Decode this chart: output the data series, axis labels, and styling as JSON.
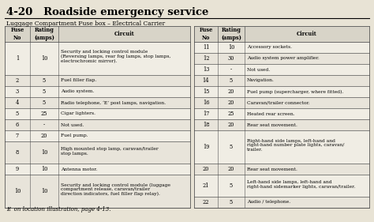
{
  "title": "4-20   Roadside emergency service",
  "subtitle": "Luggage Compartment Fuse box – Electrical Carrier",
  "footnote": "E  on location illustration, page 4-13.",
  "bg_color": "#e8e3d5",
  "header_bg": "#d8d4c8",
  "row_bg_even": "#f0ede4",
  "row_bg_odd": "#e8e4da",
  "table1_headers": [
    "Fuse\nNo",
    "Rating\n(amps)",
    "Circuit"
  ],
  "table1_rows": [
    [
      "1",
      "10",
      "Security and locking control module\n(Reversing lamps, rear fog lamps, stop lamps,\nelectrochromic mirror)."
    ],
    [
      "2",
      "5",
      "Fuel filler flap."
    ],
    [
      "3",
      "5",
      "Audio system."
    ],
    [
      "4",
      "5",
      "Radio telephone, ‘E’ post lamps, navigation."
    ],
    [
      "5",
      "25",
      "Cigar lighters."
    ],
    [
      "6",
      "-",
      "Not used."
    ],
    [
      "7",
      "20",
      "Fuel pump."
    ],
    [
      "8",
      "10",
      "High mounted stop lamp, caravan/trailer\nstop lamps."
    ],
    [
      "9",
      "10",
      "Antenna motor."
    ],
    [
      "10",
      "10",
      "Security and locking control module (luggage\ncompartment release, caravan/trailer\ndirection indicators, fuel filler flap relay)."
    ]
  ],
  "table1_row_lines": [
    3,
    1,
    1,
    1,
    1,
    1,
    1,
    2,
    1,
    3
  ],
  "table2_headers": [
    "Fuse\nNo",
    "Rating\n(amps)",
    "Circuit"
  ],
  "table2_rows": [
    [
      "11",
      "10",
      "Accessory sockets."
    ],
    [
      "12",
      "30",
      "Audio system power amplifier."
    ],
    [
      "13",
      "-",
      "Not used."
    ],
    [
      "14",
      "5",
      "Navigation."
    ],
    [
      "15",
      "20",
      "Fuel pump (supercharger, where fitted)."
    ],
    [
      "16",
      "20",
      "Caravan/trailer connector."
    ],
    [
      "17",
      "25",
      "Heated rear screen."
    ],
    [
      "18",
      "20",
      "Rear seat movement."
    ],
    [
      "19",
      "5",
      "Right-hand side lamps, left-hand and\nright-hand number plate lights, caravan/\ntrailer."
    ],
    [
      "20",
      "20",
      "Rear seat movement."
    ],
    [
      "21",
      "5",
      "Left-hand side lamps, left-hand and\nright-hand sidemarker lights, caravan/trailer."
    ],
    [
      "22",
      "5",
      "Audio / telephone."
    ]
  ],
  "table2_row_lines": [
    1,
    1,
    1,
    1,
    1,
    1,
    1,
    1,
    3,
    1,
    2,
    1
  ],
  "highlight_text": "rear fog lamps"
}
